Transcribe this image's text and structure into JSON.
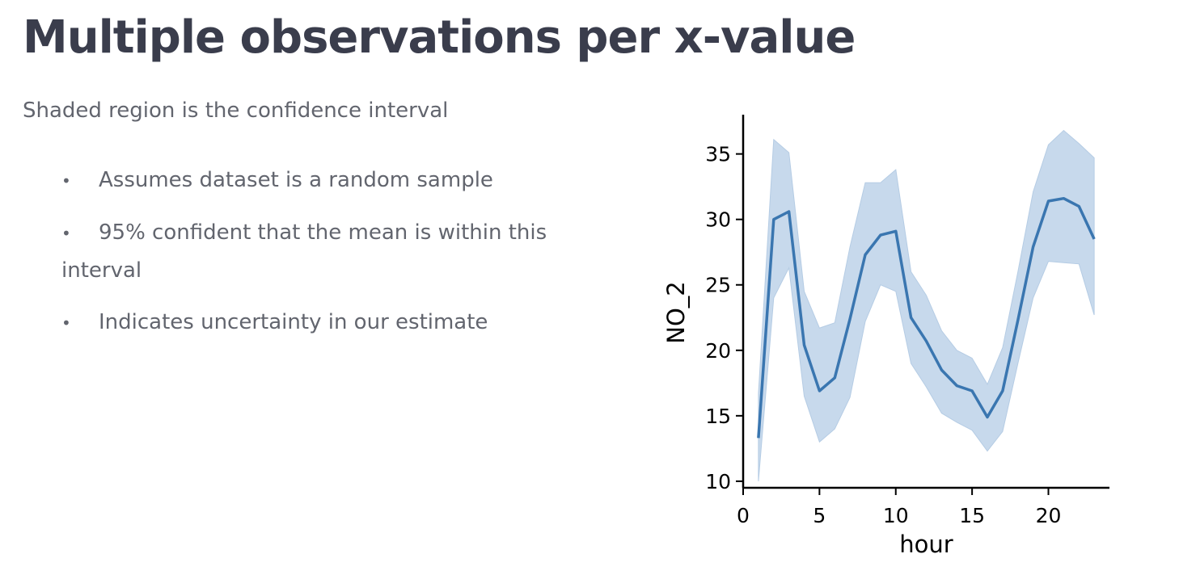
{
  "slide": {
    "title": "Multiple observations per x-value",
    "subtitle": "Shaded region is the confidence interval",
    "bullets": [
      "Assumes dataset is a random sample",
      "95% confident that the mean is within this interval",
      "Indicates uncertainty in our estimate"
    ]
  },
  "chart_data": {
    "type": "line",
    "title": "",
    "xlabel": "hour",
    "ylabel": "NO_2",
    "xlim": [
      0,
      24
    ],
    "ylim": [
      9.5,
      38
    ],
    "xticks": [
      0,
      5,
      10,
      15,
      20
    ],
    "yticks": [
      10,
      15,
      20,
      25,
      30,
      35
    ],
    "grid": false,
    "legend": false,
    "colors": {
      "line": "#3a76b0",
      "band": "#c7d9ec",
      "band_edge": "#b5cce4",
      "axis": "#000000"
    },
    "series": [
      {
        "x": [
          1,
          2,
          3,
          4,
          5,
          6,
          7,
          8,
          9,
          10,
          11,
          12,
          13,
          14,
          15,
          16,
          17,
          18,
          19,
          20,
          21,
          22,
          23
        ],
        "mean": [
          13.3,
          30.0,
          30.6,
          20.4,
          16.9,
          17.9,
          22.4,
          27.3,
          28.8,
          29.1,
          22.5,
          20.7,
          18.5,
          17.3,
          16.9,
          14.9,
          16.9,
          22.3,
          27.9,
          31.4,
          31.6,
          31.0,
          28.5
        ],
        "ci_lower": [
          10.0,
          24.0,
          26.3,
          16.5,
          13.0,
          14.0,
          16.4,
          22.2,
          25.0,
          24.5,
          19.0,
          17.2,
          15.2,
          14.5,
          13.9,
          12.3,
          13.8,
          19.0,
          24.0,
          26.8,
          26.7,
          26.6,
          22.7
        ],
        "ci_upper": [
          16.7,
          36.1,
          35.1,
          24.5,
          21.7,
          22.1,
          27.9,
          32.8,
          32.8,
          33.8,
          26.0,
          24.2,
          21.5,
          20.0,
          19.4,
          17.4,
          20.2,
          26.0,
          32.1,
          35.7,
          36.8,
          35.8,
          34.7
        ]
      }
    ]
  }
}
